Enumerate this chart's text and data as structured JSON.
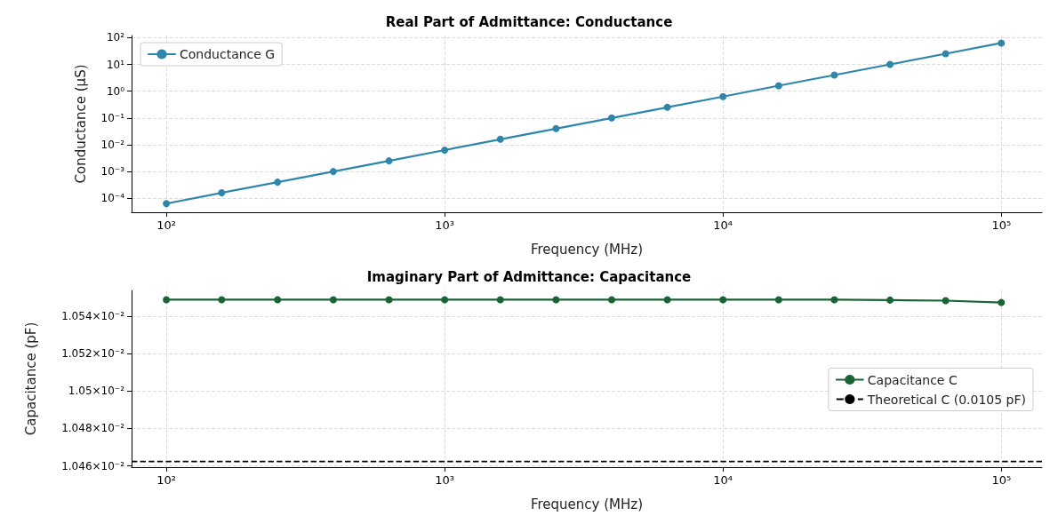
{
  "chart_data": [
    {
      "type": "line",
      "title": "Real Part of Admittance: Conductance",
      "xlabel": "Frequency (MHz)",
      "ylabel": "Conductance (μS)",
      "x": [
        100,
        158,
        251,
        398,
        631,
        1000,
        1585,
        2512,
        3981,
        6310,
        10000,
        15849,
        25119,
        39811,
        63096,
        100000
      ],
      "series": [
        {
          "name": "Conductance G",
          "color": "#2e86ab",
          "values": [
            6.3e-05,
            0.00016,
            0.0004,
            0.001,
            0.0025,
            0.0063,
            0.016,
            0.04,
            0.1,
            0.25,
            0.63,
            1.6,
            4,
            10,
            25,
            63
          ]
        }
      ],
      "log": "xy",
      "xlim": [
        75,
        140000
      ],
      "xticks": [
        {
          "value": 100,
          "label": "10²"
        },
        {
          "value": 1000,
          "label": "10³"
        },
        {
          "value": 10000,
          "label": "10⁴"
        },
        {
          "value": 100000,
          "label": "10⁵"
        }
      ],
      "ylim": [
        3e-05,
        120
      ],
      "yticks": [
        {
          "value": 0.0001,
          "label": "10⁻⁴"
        },
        {
          "value": 0.001,
          "label": "10⁻³"
        },
        {
          "value": 0.01,
          "label": "10⁻²"
        },
        {
          "value": 0.1,
          "label": "10⁻¹"
        },
        {
          "value": 1,
          "label": "10⁰"
        },
        {
          "value": 10,
          "label": "10¹"
        },
        {
          "value": 100,
          "label": "10²"
        }
      ],
      "grid": true,
      "legend": "top left",
      "marker": "circle",
      "line_style": "solid"
    },
    {
      "type": "line",
      "title": "Imaginary Part of Admittance: Capacitance",
      "xlabel": "Frequency (MHz)",
      "ylabel": "Capacitance (pF)",
      "x": [
        100,
        158,
        251,
        398,
        631,
        1000,
        1585,
        2512,
        3981,
        6310,
        10000,
        15849,
        25119,
        39811,
        63096,
        100000
      ],
      "series": [
        {
          "name": "Capacitance C",
          "color": "#1a6334",
          "values": [
            0.010549,
            0.010549,
            0.010549,
            0.010549,
            0.010549,
            0.010549,
            0.010549,
            0.010549,
            0.010549,
            0.010549,
            0.010549,
            0.010549,
            0.010549,
            0.0105488,
            0.0105485,
            0.0105475
          ]
        }
      ],
      "ref_lines": [
        {
          "axis": "y",
          "value": 0.0104623,
          "label": "Theoretical C (0.0105 pF)",
          "color": "#000000",
          "line_style": "dashed"
        }
      ],
      "log": "xy",
      "xlim": [
        75,
        140000
      ],
      "xticks": [
        {
          "value": 100,
          "label": "10²"
        },
        {
          "value": 1000,
          "label": "10³"
        },
        {
          "value": 10000,
          "label": "10⁴"
        },
        {
          "value": 100000,
          "label": "10⁵"
        }
      ],
      "ylim": [
        0.0104593,
        0.010554
      ],
      "yticks": [
        {
          "value": 0.01046,
          "label": "1.046×10⁻²"
        },
        {
          "value": 0.01048,
          "label": "1.048×10⁻²"
        },
        {
          "value": 0.0105,
          "label": "1.05×10⁻²"
        },
        {
          "value": 0.01052,
          "label": "1.052×10⁻²"
        },
        {
          "value": 0.01054,
          "label": "1.054×10⁻²"
        }
      ],
      "grid": true,
      "legend": "right",
      "marker": "circle",
      "line_style": "solid"
    }
  ]
}
